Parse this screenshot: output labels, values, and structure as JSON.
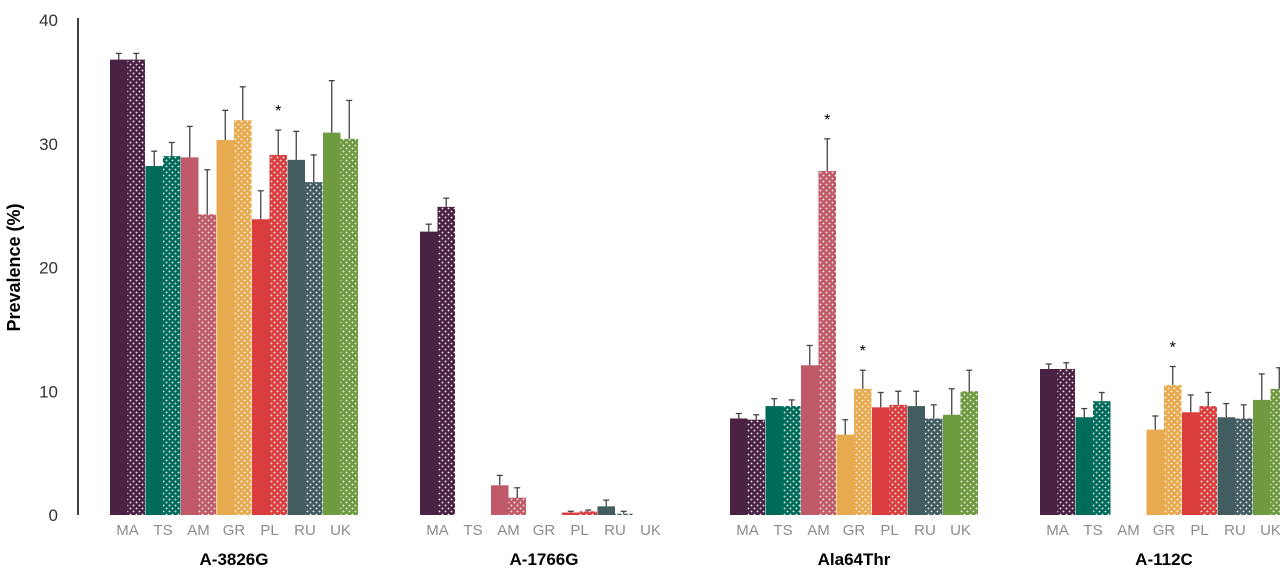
{
  "chart_data": {
    "type": "bar",
    "ylabel": "Prevalence (%)",
    "ylim": [
      0,
      40
    ],
    "yticks": [
      0,
      10,
      20,
      30,
      40
    ],
    "categories": [
      "MA",
      "TS",
      "AM",
      "GR",
      "PL",
      "RU",
      "UK"
    ],
    "category_colors": {
      "MA": "#4a2244",
      "TS": "#006b5a",
      "AM": "#c05a68",
      "GR": "#e8aa4e",
      "PL": "#d93d3d",
      "RU": "#415d60",
      "UK": "#6e9a40"
    },
    "pattern_note_color": "#ffffff",
    "groups": [
      {
        "name": "A-3826G",
        "bars": [
          {
            "cat": "MA",
            "solid": 36.8,
            "solid_err": 0.5,
            "dotted": 36.8,
            "dotted_err": 0.5
          },
          {
            "cat": "TS",
            "solid": 28.2,
            "solid_err": 1.2,
            "dotted": 29.0,
            "dotted_err": 1.1
          },
          {
            "cat": "AM",
            "solid": 28.9,
            "solid_err": 2.5,
            "dotted": 24.3,
            "dotted_err": 3.6
          },
          {
            "cat": "GR",
            "solid": 30.3,
            "solid_err": 2.4,
            "dotted": 31.9,
            "dotted_err": 2.7
          },
          {
            "cat": "PL",
            "solid": 23.9,
            "solid_err": 2.3,
            "dotted": 29.1,
            "dotted_err": 2.0,
            "star": true
          },
          {
            "cat": "RU",
            "solid": 28.7,
            "solid_err": 2.3,
            "dotted": 26.9,
            "dotted_err": 2.2
          },
          {
            "cat": "UK",
            "solid": 30.9,
            "solid_err": 4.2,
            "dotted": 30.4,
            "dotted_err": 3.1
          }
        ]
      },
      {
        "name": "A-1766G",
        "bars": [
          {
            "cat": "MA",
            "solid": 22.9,
            "solid_err": 0.6,
            "dotted": 24.9,
            "dotted_err": 0.7
          },
          {
            "cat": "TS",
            "solid": 0,
            "solid_err": 0,
            "dotted": 0,
            "dotted_err": 0
          },
          {
            "cat": "AM",
            "solid": 2.4,
            "solid_err": 0.8,
            "dotted": 1.4,
            "dotted_err": 0.8
          },
          {
            "cat": "GR",
            "solid": 0,
            "solid_err": 0,
            "dotted": 0,
            "dotted_err": 0
          },
          {
            "cat": "PL",
            "solid": 0.2,
            "solid_err": 0.1,
            "dotted": 0.3,
            "dotted_err": 0.1
          },
          {
            "cat": "RU",
            "solid": 0.7,
            "solid_err": 0.5,
            "dotted": 0.1,
            "dotted_err": 0.2
          },
          {
            "cat": "UK",
            "solid": 0,
            "solid_err": 0,
            "dotted": 0,
            "dotted_err": 0
          }
        ]
      },
      {
        "name": "Ala64Thr",
        "bars": [
          {
            "cat": "MA",
            "solid": 7.8,
            "solid_err": 0.4,
            "dotted": 7.7,
            "dotted_err": 0.4
          },
          {
            "cat": "TS",
            "solid": 8.8,
            "solid_err": 0.6,
            "dotted": 8.8,
            "dotted_err": 0.5
          },
          {
            "cat": "AM",
            "solid": 12.1,
            "solid_err": 1.6,
            "dotted": 27.8,
            "dotted_err": 2.6,
            "star": true
          },
          {
            "cat": "GR",
            "solid": 6.5,
            "solid_err": 1.2,
            "dotted": 10.2,
            "dotted_err": 1.5,
            "star": true
          },
          {
            "cat": "PL",
            "solid": 8.7,
            "solid_err": 1.2,
            "dotted": 8.9,
            "dotted_err": 1.1
          },
          {
            "cat": "RU",
            "solid": 8.8,
            "solid_err": 1.2,
            "dotted": 7.8,
            "dotted_err": 1.1
          },
          {
            "cat": "UK",
            "solid": 8.1,
            "solid_err": 2.1,
            "dotted": 10.0,
            "dotted_err": 1.7
          }
        ]
      },
      {
        "name": "A-112C",
        "bars": [
          {
            "cat": "MA",
            "solid": 11.8,
            "solid_err": 0.4,
            "dotted": 11.8,
            "dotted_err": 0.5
          },
          {
            "cat": "TS",
            "solid": 7.9,
            "solid_err": 0.7,
            "dotted": 9.2,
            "dotted_err": 0.7
          },
          {
            "cat": "AM",
            "solid": 0,
            "solid_err": 0,
            "dotted": 0,
            "dotted_err": 0
          },
          {
            "cat": "GR",
            "solid": 6.9,
            "solid_err": 1.1,
            "dotted": 10.5,
            "dotted_err": 1.5,
            "star": true
          },
          {
            "cat": "PL",
            "solid": 8.3,
            "solid_err": 1.4,
            "dotted": 8.8,
            "dotted_err": 1.1
          },
          {
            "cat": "RU",
            "solid": 7.9,
            "solid_err": 1.1,
            "dotted": 7.8,
            "dotted_err": 1.1
          },
          {
            "cat": "UK",
            "solid": 9.3,
            "solid_err": 2.1,
            "dotted": 10.2,
            "dotted_err": 1.7
          }
        ]
      }
    ],
    "star_label": "*"
  }
}
